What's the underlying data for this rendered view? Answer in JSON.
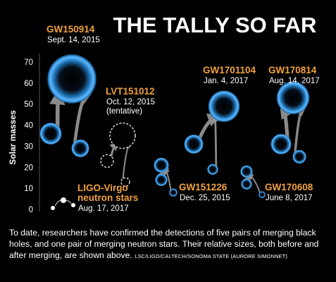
{
  "title": "THE TALLY SO FAR",
  "caption": "To date, researchers have confirmed the detections of five pairs of merging black holes, and one pair of merging neutron stars. Their relative sizes, both before and after merging, are shown above.",
  "credit": "LSC/LIGO/CALTECH/SONOMA STATE (AURORE SIMONNET)",
  "colors": {
    "background": "#000000",
    "label": "#f0a23a",
    "glow": "#3aa0e6",
    "arrow": "#9a9a9a"
  },
  "chart_data": {
    "type": "scatter",
    "title": "THE TALLY SO FAR",
    "ylabel": "Solar masses",
    "ylim": [
      0,
      70
    ],
    "yticks": [
      0,
      10,
      20,
      30,
      40,
      50,
      60,
      70
    ],
    "grid": false,
    "events": [
      {
        "name": "GW150914",
        "date_lines": [
          "Sept. 14, 2015"
        ],
        "premerger": [
          36,
          29
        ],
        "final": 62,
        "style": "solid"
      },
      {
        "name": "LVT151012",
        "date_lines": [
          "Oct. 12, 2015",
          "(tentative)"
        ],
        "premerger": [
          23,
          13
        ],
        "final": 35,
        "style": "dashed"
      },
      {
        "name": "GW151226",
        "date_lines": [
          "Dec. 25, 2015"
        ],
        "premerger": [
          14,
          8
        ],
        "final": 21,
        "style": "solid"
      },
      {
        "name": "GW1701104",
        "date_lines": [
          "Jan. 4, 2017"
        ],
        "premerger": [
          31,
          19
        ],
        "final": 49,
        "style": "solid"
      },
      {
        "name": "GW170608",
        "date_lines": [
          "June 8, 2017"
        ],
        "premerger": [
          12,
          7
        ],
        "final": 18,
        "style": "solid"
      },
      {
        "name": "GW170814",
        "date_lines": [
          "Aug. 14, 2017"
        ],
        "premerger": [
          31,
          25
        ],
        "final": 53,
        "style": "solid"
      },
      {
        "name": "LIGO-Virgo neutron stars",
        "name_lines": [
          "LIGO-Virgo",
          "neutron stars"
        ],
        "date_lines": [
          "Aug. 17, 2017"
        ],
        "premerger": [
          1.5,
          1.3
        ],
        "final": 2.7,
        "style": "small"
      }
    ]
  }
}
